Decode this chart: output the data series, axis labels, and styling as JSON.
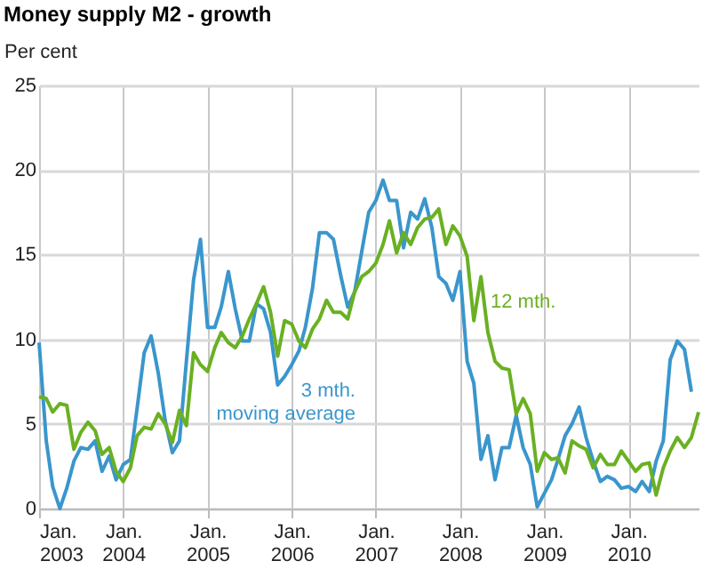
{
  "chart_data": {
    "type": "line",
    "title": "Money supply M2 - growth",
    "ylabel": "Per cent",
    "x": [
      "2003-01",
      "2003-02",
      "2003-03",
      "2003-04",
      "2003-05",
      "2003-06",
      "2003-07",
      "2003-08",
      "2003-09",
      "2003-10",
      "2003-11",
      "2003-12",
      "2004-01",
      "2004-02",
      "2004-03",
      "2004-04",
      "2004-05",
      "2004-06",
      "2004-07",
      "2004-08",
      "2004-09",
      "2004-10",
      "2004-11",
      "2004-12",
      "2005-01",
      "2005-02",
      "2005-03",
      "2005-04",
      "2005-05",
      "2005-06",
      "2005-07",
      "2005-08",
      "2005-09",
      "2005-10",
      "2005-11",
      "2005-12",
      "2006-01",
      "2006-02",
      "2006-03",
      "2006-04",
      "2006-05",
      "2006-06",
      "2006-07",
      "2006-08",
      "2006-09",
      "2006-10",
      "2006-11",
      "2006-12",
      "2007-01",
      "2007-02",
      "2007-03",
      "2007-04",
      "2007-05",
      "2007-06",
      "2007-07",
      "2007-08",
      "2007-09",
      "2007-10",
      "2007-11",
      "2007-12",
      "2008-01",
      "2008-02",
      "2008-03",
      "2008-04",
      "2008-05",
      "2008-06",
      "2008-07",
      "2008-08",
      "2008-09",
      "2008-10",
      "2008-11",
      "2008-12",
      "2009-01",
      "2009-02",
      "2009-03",
      "2009-04",
      "2009-05",
      "2009-06",
      "2009-07",
      "2009-08",
      "2009-09",
      "2009-10",
      "2009-11",
      "2009-12",
      "2010-01",
      "2010-02",
      "2010-03",
      "2010-04",
      "2010-05",
      "2010-06",
      "2010-07",
      "2010-08",
      "2010-09",
      "2010-10",
      "2010-11"
    ],
    "series": [
      {
        "name": "3 mth. moving average",
        "color": "#3a96cc",
        "values": [
          9.8,
          4.0,
          1.3,
          0,
          1.2,
          2.8,
          3.6,
          3.5,
          4.0,
          2.2,
          3.1,
          1.7,
          2.6,
          2.9,
          5.9,
          9.2,
          10.2,
          8.0,
          5.2,
          3.3,
          4.0,
          8.7,
          13.5,
          15.9,
          10.7,
          10.7,
          11.9,
          14.0,
          11.8,
          9.9,
          9.9,
          12.1,
          11.8,
          10.4,
          7.3,
          7.8,
          8.5,
          9.3,
          10.7,
          13.0,
          16.3,
          16.3,
          15.9,
          13.8,
          11.9,
          12.8,
          15.2,
          17.5,
          18.2,
          19.4,
          18.2,
          18.2,
          15.4,
          17.5,
          17.1,
          18.3,
          16.6,
          13.7,
          13.3,
          12.3,
          14.0,
          8.7,
          7.4,
          2.9,
          4.3,
          1.7,
          3.6,
          3.6,
          5.5,
          3.6,
          2.6,
          0.1,
          0.9,
          1.7,
          2.9,
          4.3,
          5.0,
          6.0,
          4.2,
          2.8,
          1.6,
          1.9,
          1.7,
          1.2,
          1.3,
          1.0,
          1.6,
          1.0,
          2.8,
          4.0,
          8.8,
          9.9,
          9.4,
          6.9,
          null
        ]
      },
      {
        "name": "12 mth.",
        "color": "#6ab023",
        "values": [
          6.6,
          6.5,
          5.7,
          6.2,
          6.1,
          3.5,
          4.5,
          5.1,
          4.6,
          3.2,
          3.6,
          2.2,
          1.6,
          2.4,
          4.3,
          4.8,
          4.7,
          5.6,
          5.0,
          3.9,
          5.8,
          4.9,
          9.2,
          8.5,
          8.1,
          9.5,
          10.4,
          9.8,
          9.5,
          10.2,
          11.2,
          12.1,
          13.1,
          11.6,
          9.0,
          11.1,
          10.9,
          9.9,
          9.5,
          10.6,
          11.2,
          12.3,
          11.6,
          11.6,
          11.2,
          12.8,
          13.7,
          14.0,
          14.5,
          15.6,
          17.0,
          15.1,
          16.3,
          15.6,
          16.6,
          17.1,
          17.2,
          17.7,
          15.6,
          16.7,
          16.1,
          14.9,
          11.1,
          13.7,
          10.4,
          8.7,
          8.3,
          8.2,
          5.6,
          6.5,
          5.6,
          2.2,
          3.3,
          2.9,
          3.0,
          2.1,
          4.0,
          3.7,
          3.5,
          2.4,
          3.2,
          2.6,
          2.6,
          3.4,
          2.8,
          2.2,
          2.6,
          2.7,
          0.8,
          2.4,
          3.4,
          4.2,
          3.6,
          4.2,
          5.7
        ]
      }
    ],
    "xlim": [
      "2003-01",
      "2010-11"
    ],
    "xticks": [
      {
        "value": "2003-01",
        "label": "Jan. 2003"
      },
      {
        "value": "2004-01",
        "label": "Jan. 2004"
      },
      {
        "value": "2005-01",
        "label": "Jan. 2005"
      },
      {
        "value": "2006-01",
        "label": "Jan. 2006"
      },
      {
        "value": "2007-01",
        "label": "Jan. 2007"
      },
      {
        "value": "2008-01",
        "label": "Jan. 2008"
      },
      {
        "value": "2009-01",
        "label": "Jan. 2009"
      },
      {
        "value": "2010-01",
        "label": "Jan. 2010"
      }
    ],
    "ylim": [
      0,
      25
    ],
    "yticks": [
      0,
      5,
      10,
      15,
      20,
      25
    ],
    "grid": true,
    "legend": false,
    "marker": "none",
    "line_style": "solid"
  }
}
